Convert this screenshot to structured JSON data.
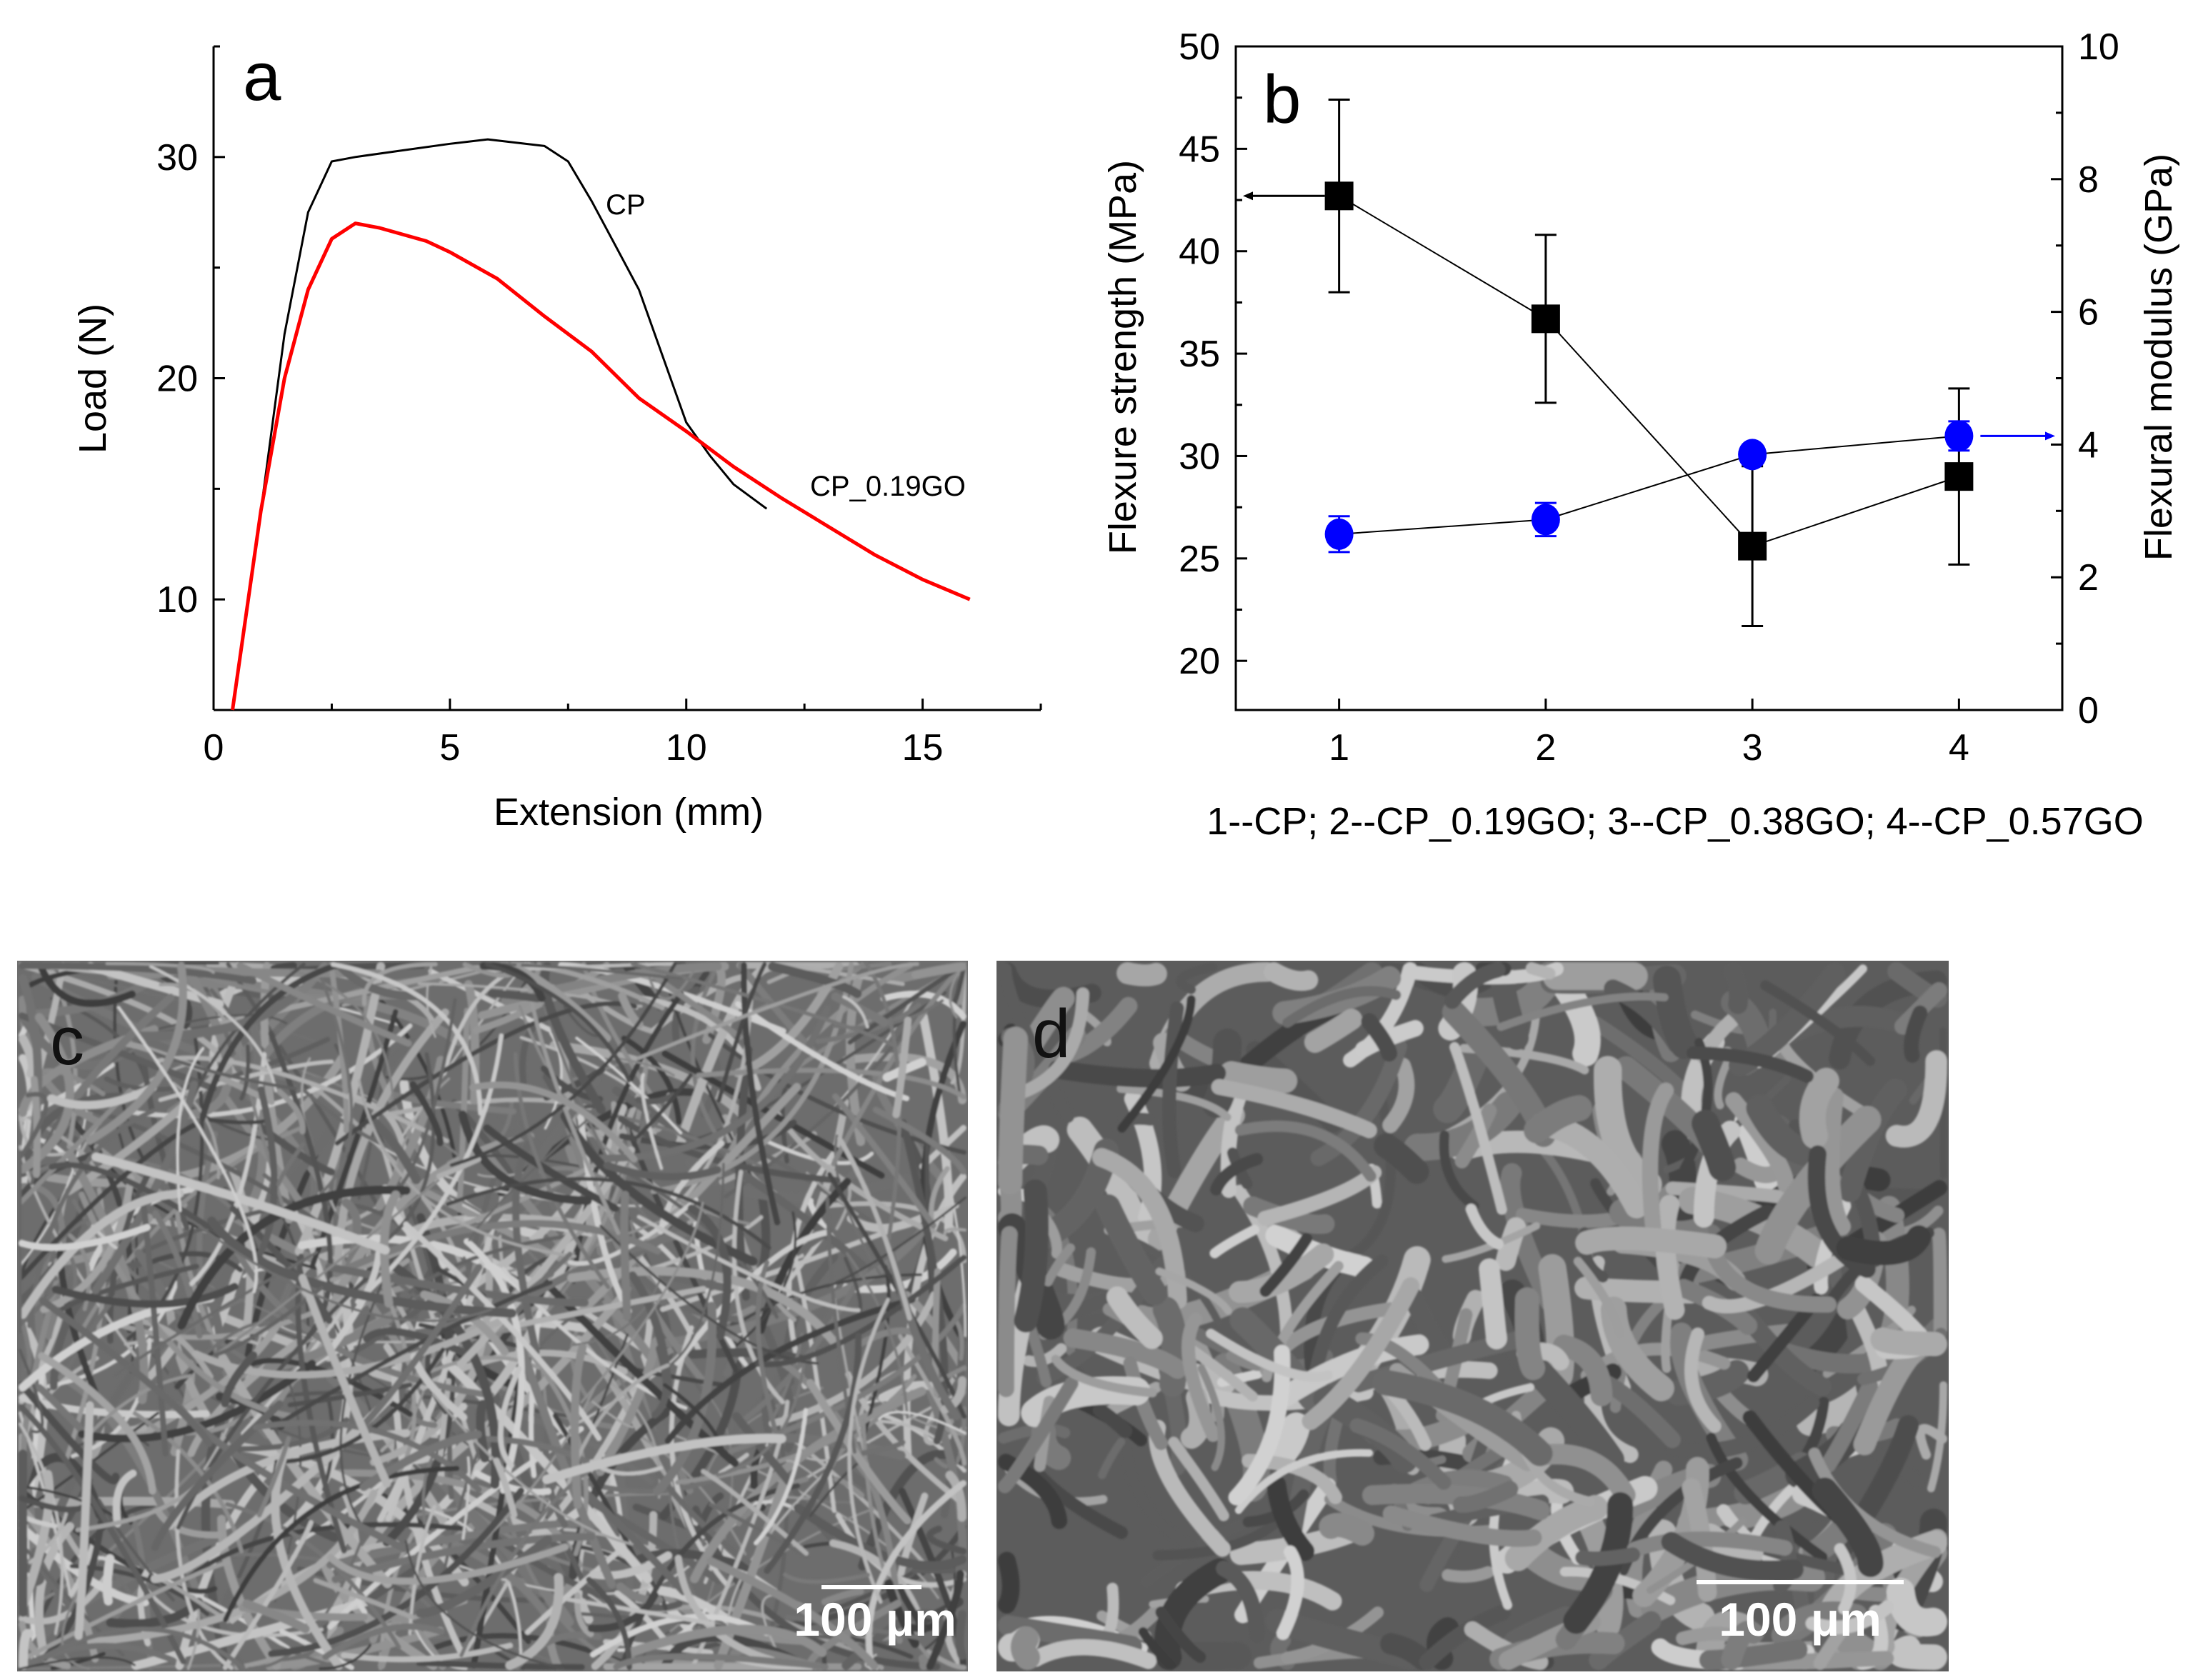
{
  "chart_data": [
    {
      "panel_label": "a",
      "type": "line",
      "xlabel": "Extension (mm)",
      "ylabel": "Load (N)",
      "xlim": [
        0,
        17.5
      ],
      "ylim": [
        5,
        35
      ],
      "xticks": [
        0,
        5,
        10,
        15
      ],
      "yticks": [
        10,
        20,
        30
      ],
      "grid": false,
      "series": [
        {
          "name": "CP",
          "color": "#000000",
          "x": [
            0.4,
            1.0,
            1.5,
            2.0,
            2.5,
            3.0,
            4.0,
            5.0,
            5.8,
            7.0,
            7.5,
            8.0,
            8.5,
            9.0,
            9.5,
            10.0,
            10.5,
            11.0,
            11.7
          ],
          "y": [
            5,
            14,
            22,
            27.5,
            29.8,
            30,
            30.3,
            30.6,
            30.8,
            30.5,
            29.8,
            28,
            26,
            24,
            21,
            18,
            16.5,
            15.2,
            14.1
          ]
        },
        {
          "name": "CP_0.19GO",
          "color": "#ff0000",
          "x": [
            0.4,
            1.0,
            1.5,
            2.0,
            2.5,
            3.0,
            3.5,
            4.5,
            5.0,
            6.0,
            7.0,
            8.0,
            9.0,
            10.0,
            11.0,
            12.0,
            13.0,
            14.0,
            15.0,
            16.0
          ],
          "y": [
            5,
            14,
            20,
            24,
            26.3,
            27,
            26.8,
            26.2,
            25.7,
            24.5,
            22.8,
            21.2,
            19.1,
            17.6,
            16,
            14.6,
            13.3,
            12,
            10.9,
            10
          ]
        }
      ]
    },
    {
      "panel_label": "b",
      "type": "scatter",
      "xlabel": "1--CP; 2--CP_0.19GO; 3--CP_0.38GO; 4--CP_0.57GO",
      "ylabel_left": "Flexure strength (MPa)",
      "ylabel_right": "Flexural modulus (GPa)",
      "xlim": [
        0.5,
        4.5
      ],
      "ylim_left": [
        17.6,
        50
      ],
      "ylim_right": [
        0,
        10
      ],
      "xticks": [
        1,
        2,
        3,
        4
      ],
      "yticks_left": [
        20,
        25,
        30,
        35,
        40,
        45,
        50
      ],
      "yticks_right": [
        0,
        2,
        4,
        6,
        8,
        10
      ],
      "grid": false,
      "series": [
        {
          "axis": "left",
          "color": "#000000",
          "marker": "square",
          "x": [
            1,
            2,
            3,
            4
          ],
          "y": [
            42.7,
            36.7,
            25.6,
            29.0
          ],
          "err": [
            4.7,
            4.1,
            3.9,
            4.3
          ]
        },
        {
          "axis": "right",
          "color": "#0000ff",
          "marker": "circle",
          "x": [
            1,
            2,
            3,
            4
          ],
          "y": [
            2.65,
            2.87,
            3.85,
            4.13
          ],
          "err": [
            0.27,
            0.25,
            0.1,
            0.22
          ]
        }
      ]
    }
  ],
  "images": [
    {
      "panel_label": "c",
      "scale_bar": "100 μm"
    },
    {
      "panel_label": "d",
      "scale_bar": "100 μm"
    }
  ]
}
